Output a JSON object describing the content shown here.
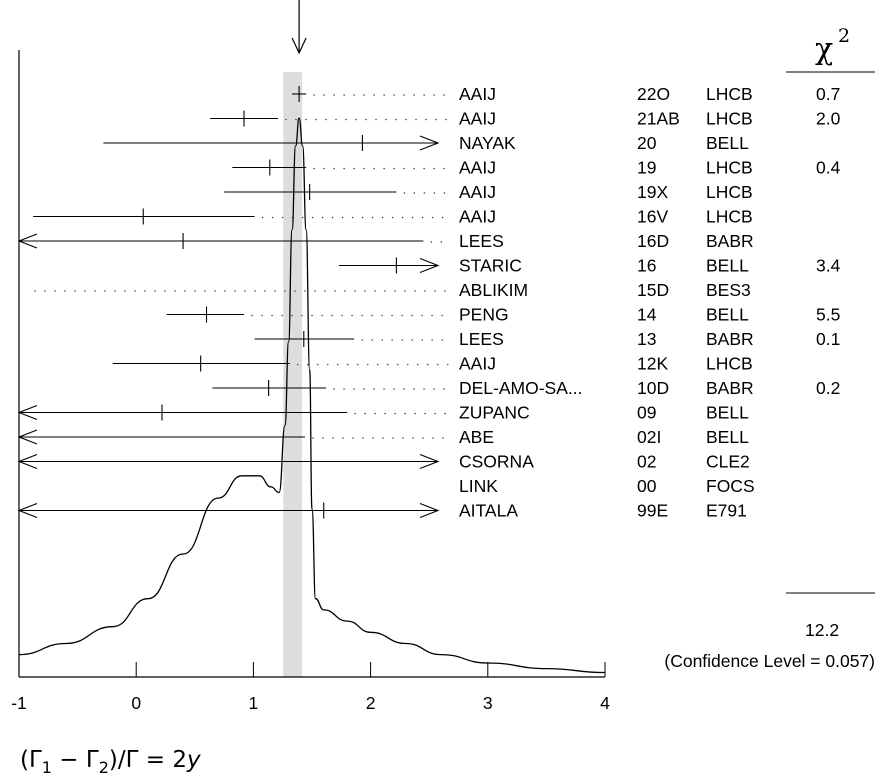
{
  "chart_data": {
    "type": "ideogram",
    "arrow_marker_value": 1.39,
    "average_band": [
      1.255,
      1.415
    ],
    "xlim": [
      -1,
      4
    ],
    "x_ticks": [
      -1,
      0,
      1,
      2,
      3,
      4
    ],
    "x_tick_labels": [
      "-1",
      "0",
      "1",
      "2",
      "3",
      "4"
    ],
    "xlabel": "(Γ1 − Γ2)/Γ = 2y",
    "xlabel_parts": {
      "open": "(Γ",
      "sub1": "1",
      "minus": " − Γ",
      "sub2": "2",
      "close": ")/Γ = 2",
      "var": "y"
    },
    "chi2_header": {
      "symbol": "χ",
      "power": "2"
    },
    "measurements": [
      {
        "author": "AAIJ",
        "ref": "22O",
        "exp": "LHCB",
        "chi2": "0.7",
        "value": 1.39,
        "lo": 1.33,
        "hi": 1.45,
        "arrow_left": false,
        "arrow_right": false
      },
      {
        "author": "AAIJ",
        "ref": "21AB",
        "exp": "LHCB",
        "chi2": "2.0",
        "value": 0.92,
        "lo": 0.63,
        "hi": 1.21,
        "arrow_left": false,
        "arrow_right": false
      },
      {
        "author": "NAYAK",
        "ref": "20",
        "exp": "BELL",
        "chi2": "",
        "value": 1.93,
        "lo": -0.28,
        "hi": 4,
        "arrow_left": false,
        "arrow_right": true
      },
      {
        "author": "AAIJ",
        "ref": "19",
        "exp": "LHCB",
        "chi2": "0.4",
        "value": 1.14,
        "lo": 0.82,
        "hi": 1.45,
        "arrow_left": false,
        "arrow_right": false
      },
      {
        "author": "AAIJ",
        "ref": "19X",
        "exp": "LHCB",
        "chi2": "",
        "value": 1.48,
        "lo": 0.75,
        "hi": 2.22,
        "arrow_left": false,
        "arrow_right": false
      },
      {
        "author": "AAIJ",
        "ref": "16V",
        "exp": "LHCB",
        "chi2": "",
        "value": 0.06,
        "lo": -0.88,
        "hi": 1.01,
        "arrow_left": false,
        "arrow_right": false
      },
      {
        "author": "LEES",
        "ref": "16D",
        "exp": "BABR",
        "chi2": "",
        "value": 0.4,
        "lo": -1,
        "hi": 2.45,
        "arrow_left": true,
        "arrow_right": false
      },
      {
        "author": "STARIC",
        "ref": "16",
        "exp": "BELL",
        "chi2": "3.4",
        "value": 2.22,
        "lo": 1.73,
        "hi": 2.72,
        "arrow_left": false,
        "arrow_right": true
      },
      {
        "author": "ABLIKIM",
        "ref": "15D",
        "exp": "BES3",
        "chi2": "",
        "value": null,
        "lo": null,
        "hi": null,
        "arrow_left": false,
        "arrow_right": false
      },
      {
        "author": "PENG",
        "ref": "14",
        "exp": "BELL",
        "chi2": "5.5",
        "value": 0.6,
        "lo": 0.26,
        "hi": 0.92,
        "arrow_left": false,
        "arrow_right": false
      },
      {
        "author": "LEES",
        "ref": "13",
        "exp": "BABR",
        "chi2": "0.1",
        "value": 1.43,
        "lo": 1.01,
        "hi": 1.86,
        "arrow_left": false,
        "arrow_right": false
      },
      {
        "author": "AAIJ",
        "ref": "12K",
        "exp": "LHCB",
        "chi2": "",
        "value": 0.55,
        "lo": -0.2,
        "hi": 1.31,
        "arrow_left": false,
        "arrow_right": false
      },
      {
        "author": "DEL-AMO-SA...",
        "ref": "10D",
        "exp": "BABR",
        "chi2": "0.2",
        "value": 1.13,
        "lo": 0.65,
        "hi": 1.62,
        "arrow_left": false,
        "arrow_right": false
      },
      {
        "author": "ZUPANC",
        "ref": "09",
        "exp": "BELL",
        "chi2": "",
        "value": 0.22,
        "lo": -1,
        "hi": 1.8,
        "arrow_left": true,
        "arrow_right": false
      },
      {
        "author": "ABE",
        "ref": "02I",
        "exp": "BELL",
        "chi2": "",
        "value": null,
        "lo": -1,
        "hi": 1.44,
        "arrow_left": true,
        "arrow_right": false
      },
      {
        "author": "CSORNA",
        "ref": "02",
        "exp": "CLE2",
        "chi2": "",
        "value": null,
        "lo": -1,
        "hi": 4,
        "arrow_left": true,
        "arrow_right": true
      },
      {
        "author": "LINK",
        "ref": "00",
        "exp": "FOCS",
        "chi2": "",
        "value": null,
        "lo": null,
        "hi": null,
        "arrow_left": false,
        "arrow_right": false
      },
      {
        "author": "AITALA",
        "ref": "99E",
        "exp": "E791",
        "chi2": "",
        "value": 1.6,
        "lo": -1,
        "hi": 4,
        "arrow_left": true,
        "arrow_right": true
      }
    ],
    "chi2_total": "12.2",
    "confidence_level_text": "(Confidence Level = 0.057)",
    "ideogram_curve": [
      [
        -1,
        0.04
      ],
      [
        -0.6,
        0.06
      ],
      [
        -0.2,
        0.09
      ],
      [
        0.1,
        0.14
      ],
      [
        0.4,
        0.22
      ],
      [
        0.7,
        0.32
      ],
      [
        0.9,
        0.36
      ],
      [
        1.05,
        0.36
      ],
      [
        1.15,
        0.34
      ],
      [
        1.22,
        0.33
      ],
      [
        1.27,
        0.45
      ],
      [
        1.3,
        0.6
      ],
      [
        1.33,
        0.8
      ],
      [
        1.36,
        0.95
      ],
      [
        1.39,
        1.0
      ],
      [
        1.42,
        0.95
      ],
      [
        1.45,
        0.8
      ],
      [
        1.48,
        0.55
      ],
      [
        1.5,
        0.3
      ],
      [
        1.53,
        0.14
      ],
      [
        1.6,
        0.12
      ],
      [
        1.8,
        0.1
      ],
      [
        2.0,
        0.08
      ],
      [
        2.3,
        0.06
      ],
      [
        2.6,
        0.04
      ],
      [
        3.0,
        0.025
      ],
      [
        3.5,
        0.015
      ],
      [
        4,
        0.008
      ]
    ]
  }
}
